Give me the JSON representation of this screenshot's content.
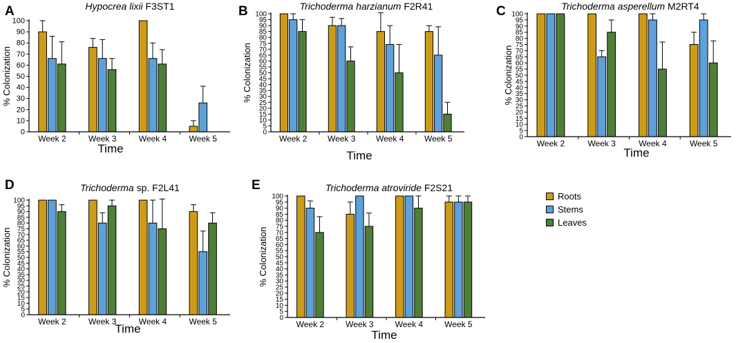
{
  "legend": {
    "roots": "Roots",
    "stems": "Stems",
    "leaves": "Leaves"
  },
  "colors": {
    "roots": "#CC9B1A",
    "stems": "#5EA1D9",
    "leaves": "#4E7F38"
  },
  "chart_data": [
    {
      "panel": "A",
      "type": "bar",
      "title_italic": "Hypocrea lixii",
      "title_plain": " F3ST1",
      "xlabel": "Time",
      "ylabel": "% Colonization",
      "ylim": [
        0,
        100
      ],
      "yticks": [
        0,
        10,
        20,
        30,
        40,
        50,
        60,
        70,
        80,
        90,
        100
      ],
      "categories": [
        "Week 2",
        "Week 3",
        "Week 4",
        "Week 5"
      ],
      "series": [
        {
          "name": "Roots",
          "values": [
            90,
            76,
            100,
            5
          ],
          "errors": [
            10,
            8,
            0,
            5
          ]
        },
        {
          "name": "Stems",
          "values": [
            66,
            66,
            66,
            26
          ],
          "errors": [
            20,
            17,
            14,
            15
          ]
        },
        {
          "name": "Leaves",
          "values": [
            61,
            56,
            61,
            0
          ],
          "errors": [
            20,
            10,
            13,
            0
          ]
        }
      ]
    },
    {
      "panel": "B",
      "type": "bar",
      "title_italic": "Trichoderma harzianum",
      "title_plain": " F2R41",
      "xlabel": "Time",
      "ylabel": "% Colonization",
      "ylim": [
        0,
        100
      ],
      "yticks": [
        0,
        5,
        10,
        15,
        20,
        25,
        30,
        35,
        40,
        45,
        50,
        55,
        60,
        65,
        70,
        75,
        80,
        85,
        90,
        95,
        100
      ],
      "categories": [
        "Week 2",
        "Week 3",
        "Week 4",
        "Week 5"
      ],
      "series": [
        {
          "name": "Roots",
          "values": [
            100,
            90,
            85,
            85
          ],
          "errors": [
            0,
            7,
            16,
            5
          ]
        },
        {
          "name": "Stems",
          "values": [
            95,
            90,
            74,
            65
          ],
          "errors": [
            5,
            6,
            16,
            24
          ]
        },
        {
          "name": "Leaves",
          "values": [
            85,
            60,
            50,
            15
          ],
          "errors": [
            10,
            12,
            24,
            10
          ]
        }
      ]
    },
    {
      "panel": "C",
      "type": "bar",
      "title_italic": "Trichoderma asperellum",
      "title_plain": " M2RT4",
      "xlabel": "Time",
      "ylabel": "% Colonization",
      "ylim": [
        0,
        100
      ],
      "yticks": [
        0,
        5,
        10,
        15,
        20,
        25,
        30,
        35,
        40,
        45,
        50,
        55,
        60,
        65,
        70,
        75,
        80,
        85,
        90,
        95,
        100
      ],
      "categories": [
        "Week 2",
        "Week 3",
        "Week 4",
        "Week 5"
      ],
      "series": [
        {
          "name": "Roots",
          "values": [
            100,
            100,
            100,
            75
          ],
          "errors": [
            0,
            0,
            0,
            10
          ]
        },
        {
          "name": "Stems",
          "values": [
            100,
            65,
            95,
            95
          ],
          "errors": [
            0,
            5,
            5,
            5
          ]
        },
        {
          "name": "Leaves",
          "values": [
            100,
            85,
            55,
            60
          ],
          "errors": [
            0,
            10,
            22,
            18
          ]
        }
      ]
    },
    {
      "panel": "D",
      "type": "bar",
      "title_italic": "Trichoderma",
      "title_plain": " sp. F2L41",
      "xlabel": "Time",
      "ylabel": "% Colonization",
      "ylim": [
        0,
        100
      ],
      "yticks": [
        0,
        5,
        10,
        15,
        20,
        25,
        30,
        35,
        40,
        45,
        50,
        55,
        60,
        65,
        70,
        75,
        80,
        85,
        90,
        95,
        100
      ],
      "categories": [
        "Week 2",
        "Week 3",
        "Week 4",
        "Week 5"
      ],
      "series": [
        {
          "name": "Roots",
          "values": [
            100,
            100,
            100,
            90
          ],
          "errors": [
            0,
            0,
            0,
            6
          ]
        },
        {
          "name": "Stems",
          "values": [
            100,
            80,
            80,
            55
          ],
          "errors": [
            0,
            9,
            20,
            18
          ]
        },
        {
          "name": "Leaves",
          "values": [
            90,
            95,
            75,
            80
          ],
          "errors": [
            6,
            5,
            26,
            9
          ]
        }
      ]
    },
    {
      "panel": "E",
      "type": "bar",
      "title_italic": "Trichoderma atroviride",
      "title_plain": " F2S21",
      "xlabel": "Time",
      "ylabel": "% Colonization",
      "ylim": [
        0,
        100
      ],
      "yticks": [
        0,
        5,
        10,
        15,
        20,
        25,
        30,
        35,
        40,
        45,
        50,
        55,
        60,
        65,
        70,
        75,
        80,
        85,
        90,
        95,
        100
      ],
      "categories": [
        "Week 2",
        "Week 3",
        "Week 4",
        "Week 5"
      ],
      "series": [
        {
          "name": "Roots",
          "values": [
            100,
            85,
            100,
            95
          ],
          "errors": [
            0,
            10,
            0,
            5
          ]
        },
        {
          "name": "Stems",
          "values": [
            90,
            100,
            100,
            95
          ],
          "errors": [
            6,
            0,
            0,
            5
          ]
        },
        {
          "name": "Leaves",
          "values": [
            70,
            75,
            90,
            95
          ],
          "errors": [
            13,
            11,
            10,
            5
          ]
        }
      ]
    }
  ]
}
